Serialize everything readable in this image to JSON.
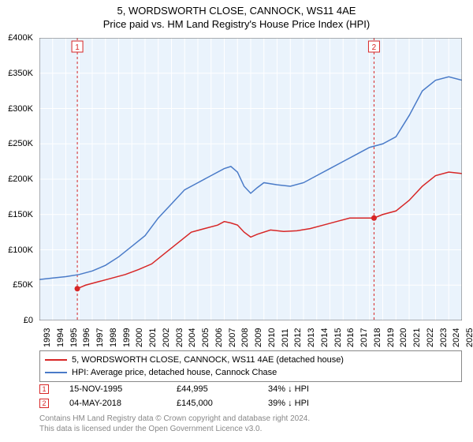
{
  "title": "5, WORDSWORTH CLOSE, CANNOCK, WS11 4AE",
  "subtitle": "Price paid vs. HM Land Registry's House Price Index (HPI)",
  "chart": {
    "type": "line",
    "background_color": "#ffffff",
    "plot_background_color": "#eaf3fc",
    "grid_color": "#ffffff",
    "axis_color": "#000000",
    "title_fontsize": 13,
    "label_fontsize": 11,
    "x": {
      "min": 1993,
      "max": 2025,
      "ticks": [
        1993,
        1994,
        1995,
        1996,
        1997,
        1998,
        1999,
        2000,
        2001,
        2002,
        2003,
        2004,
        2005,
        2006,
        2007,
        2008,
        2009,
        2010,
        2011,
        2012,
        2013,
        2014,
        2015,
        2016,
        2017,
        2018,
        2019,
        2020,
        2021,
        2022,
        2023,
        2024,
        2025
      ]
    },
    "y": {
      "min": 0,
      "max": 400000,
      "tick_step": 50000,
      "tick_labels": [
        "£0",
        "£50K",
        "£100K",
        "£150K",
        "£200K",
        "£250K",
        "£300K",
        "£350K",
        "£400K"
      ]
    },
    "series": [
      {
        "name": "property",
        "label": "5, WORDSWORTH CLOSE, CANNOCK, WS11 4AE (detached house)",
        "color": "#d72626",
        "line_width": 1.5,
        "data": [
          [
            1995.87,
            44995
          ],
          [
            1996.5,
            50000
          ],
          [
            1997.5,
            55000
          ],
          [
            1998.5,
            60000
          ],
          [
            1999.5,
            65000
          ],
          [
            2000.5,
            72000
          ],
          [
            2001.5,
            80000
          ],
          [
            2002.5,
            95000
          ],
          [
            2003.5,
            110000
          ],
          [
            2004.5,
            125000
          ],
          [
            2005.5,
            130000
          ],
          [
            2006.5,
            135000
          ],
          [
            2007.0,
            140000
          ],
          [
            2007.5,
            138000
          ],
          [
            2008.0,
            135000
          ],
          [
            2008.5,
            125000
          ],
          [
            2009.0,
            118000
          ],
          [
            2009.5,
            122000
          ],
          [
            2010.5,
            128000
          ],
          [
            2011.5,
            126000
          ],
          [
            2012.5,
            127000
          ],
          [
            2013.5,
            130000
          ],
          [
            2014.5,
            135000
          ],
          [
            2015.5,
            140000
          ],
          [
            2016.5,
            145000
          ],
          [
            2017.5,
            145000
          ],
          [
            2018.34,
            145000
          ],
          [
            2019.0,
            150000
          ],
          [
            2020.0,
            155000
          ],
          [
            2021.0,
            170000
          ],
          [
            2022.0,
            190000
          ],
          [
            2023.0,
            205000
          ],
          [
            2024.0,
            210000
          ],
          [
            2025.0,
            208000
          ]
        ]
      },
      {
        "name": "hpi",
        "label": "HPI: Average price, detached house, Cannock Chase",
        "color": "#4a7bc8",
        "line_width": 1.5,
        "data": [
          [
            1993.0,
            58000
          ],
          [
            1994.0,
            60000
          ],
          [
            1995.0,
            62000
          ],
          [
            1996.0,
            65000
          ],
          [
            1997.0,
            70000
          ],
          [
            1998.0,
            78000
          ],
          [
            1999.0,
            90000
          ],
          [
            2000.0,
            105000
          ],
          [
            2001.0,
            120000
          ],
          [
            2002.0,
            145000
          ],
          [
            2003.0,
            165000
          ],
          [
            2004.0,
            185000
          ],
          [
            2005.0,
            195000
          ],
          [
            2006.0,
            205000
          ],
          [
            2007.0,
            215000
          ],
          [
            2007.5,
            218000
          ],
          [
            2008.0,
            210000
          ],
          [
            2008.5,
            190000
          ],
          [
            2009.0,
            180000
          ],
          [
            2009.5,
            188000
          ],
          [
            2010.0,
            195000
          ],
          [
            2011.0,
            192000
          ],
          [
            2012.0,
            190000
          ],
          [
            2013.0,
            195000
          ],
          [
            2014.0,
            205000
          ],
          [
            2015.0,
            215000
          ],
          [
            2016.0,
            225000
          ],
          [
            2017.0,
            235000
          ],
          [
            2018.0,
            245000
          ],
          [
            2019.0,
            250000
          ],
          [
            2020.0,
            260000
          ],
          [
            2021.0,
            290000
          ],
          [
            2022.0,
            325000
          ],
          [
            2023.0,
            340000
          ],
          [
            2024.0,
            345000
          ],
          [
            2025.0,
            340000
          ]
        ]
      }
    ],
    "markers": [
      {
        "id": "1",
        "x": 1995.87,
        "y": 44995,
        "color": "#d72626",
        "line_dash": "3,3"
      },
      {
        "id": "2",
        "x": 2018.34,
        "y": 145000,
        "color": "#d72626",
        "line_dash": "3,3"
      }
    ]
  },
  "legend": {
    "items": [
      {
        "color": "#d72626",
        "label": "5, WORDSWORTH CLOSE, CANNOCK, WS11 4AE (detached house)"
      },
      {
        "color": "#4a7bc8",
        "label": "HPI: Average price, detached house, Cannock Chase"
      }
    ]
  },
  "transactions": [
    {
      "id": "1",
      "date": "15-NOV-1995",
      "price": "£44,995",
      "delta": "34% ↓ HPI",
      "box_color": "#d72626"
    },
    {
      "id": "2",
      "date": "04-MAY-2018",
      "price": "£145,000",
      "delta": "39% ↓ HPI",
      "box_color": "#d72626"
    }
  ],
  "footer_line1": "Contains HM Land Registry data © Crown copyright and database right 2024.",
  "footer_line2": "This data is licensed under the Open Government Licence v3.0."
}
